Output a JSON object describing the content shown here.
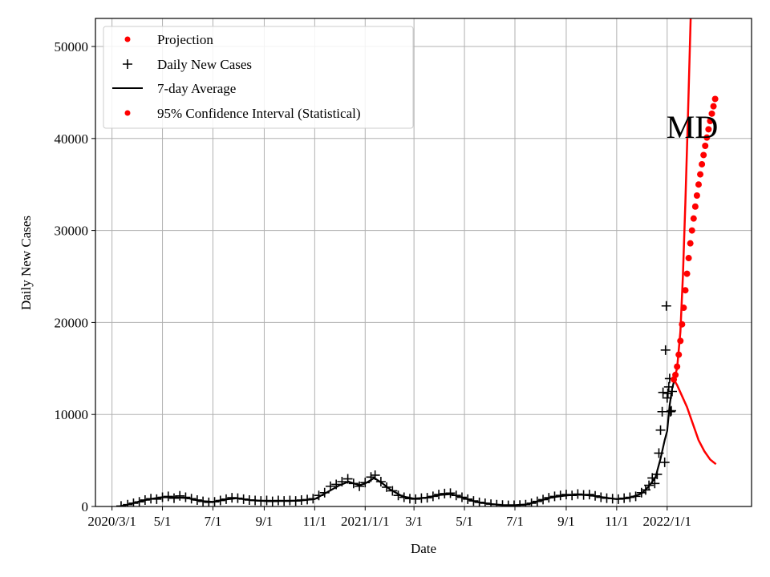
{
  "chart_data": {
    "type": "line",
    "title": "",
    "annotation": "MD",
    "xlabel": "Date",
    "ylabel": "Daily New Cases",
    "xlim": [
      "2020-02-10",
      "2022-04-13"
    ],
    "ylim": [
      0,
      53050
    ],
    "grid": true,
    "legend_position": "top-left",
    "x_ticks": [
      {
        "date": "2020-03-01",
        "label": "2020/3/1"
      },
      {
        "date": "2020-05-01",
        "label": "5/1"
      },
      {
        "date": "2020-07-01",
        "label": "7/1"
      },
      {
        "date": "2020-09-01",
        "label": "9/1"
      },
      {
        "date": "2020-11-01",
        "label": "11/1"
      },
      {
        "date": "2021-01-01",
        "label": "2021/1/1"
      },
      {
        "date": "2021-03-01",
        "label": "3/1"
      },
      {
        "date": "2021-05-01",
        "label": "5/1"
      },
      {
        "date": "2021-07-01",
        "label": "7/1"
      },
      {
        "date": "2021-09-01",
        "label": "9/1"
      },
      {
        "date": "2021-11-01",
        "label": "11/1"
      },
      {
        "date": "2022-01-01",
        "label": "2022/1/1"
      }
    ],
    "y_ticks": [
      0,
      10000,
      20000,
      30000,
      40000,
      50000
    ],
    "colors": {
      "projection": "#ff0000",
      "daily": "#000000",
      "average": "#000000",
      "ci": "#ff0000"
    },
    "legend": [
      {
        "label": "Projection",
        "marker": "dot",
        "color": "#ff0000"
      },
      {
        "label": "Daily New Cases",
        "marker": "plus",
        "color": "#000000"
      },
      {
        "label": "7-day Average",
        "marker": "line",
        "color": "#000000"
      },
      {
        "label": "95% Confidence Interval (Statistical)",
        "marker": "dot",
        "color": "#ff0000"
      }
    ],
    "series": [
      {
        "name": "Daily New Cases",
        "kind": "scatter-plus",
        "points": [
          [
            "2020-03-12",
            50
          ],
          [
            "2020-03-20",
            200
          ],
          [
            "2020-03-27",
            350
          ],
          [
            "2020-04-03",
            500
          ],
          [
            "2020-04-10",
            700
          ],
          [
            "2020-04-17",
            850
          ],
          [
            "2020-04-24",
            800
          ],
          [
            "2020-05-01",
            1000
          ],
          [
            "2020-05-08",
            1100
          ],
          [
            "2020-05-15",
            900
          ],
          [
            "2020-05-22",
            1150
          ],
          [
            "2020-05-29",
            1000
          ],
          [
            "2020-06-05",
            850
          ],
          [
            "2020-06-12",
            700
          ],
          [
            "2020-06-19",
            550
          ],
          [
            "2020-06-26",
            450
          ],
          [
            "2020-07-03",
            500
          ],
          [
            "2020-07-10",
            650
          ],
          [
            "2020-07-17",
            800
          ],
          [
            "2020-07-24",
            950
          ],
          [
            "2020-07-31",
            900
          ],
          [
            "2020-08-07",
            800
          ],
          [
            "2020-08-14",
            700
          ],
          [
            "2020-08-21",
            650
          ],
          [
            "2020-08-28",
            600
          ],
          [
            "2020-09-04",
            650
          ],
          [
            "2020-09-11",
            550
          ],
          [
            "2020-09-18",
            650
          ],
          [
            "2020-09-25",
            600
          ],
          [
            "2020-10-02",
            650
          ],
          [
            "2020-10-09",
            600
          ],
          [
            "2020-10-16",
            700
          ],
          [
            "2020-10-23",
            750
          ],
          [
            "2020-10-30",
            850
          ],
          [
            "2020-11-06",
            1200
          ],
          [
            "2020-11-13",
            1500
          ],
          [
            "2020-11-20",
            2200
          ],
          [
            "2020-11-27",
            2400
          ],
          [
            "2020-12-04",
            2700
          ],
          [
            "2020-12-11",
            3000
          ],
          [
            "2020-12-18",
            2500
          ],
          [
            "2020-12-25",
            2200
          ],
          [
            "2021-01-01",
            2600
          ],
          [
            "2021-01-08",
            3200
          ],
          [
            "2021-01-13",
            3400
          ],
          [
            "2021-01-20",
            2700
          ],
          [
            "2021-01-27",
            2100
          ],
          [
            "2021-02-03",
            1700
          ],
          [
            "2021-02-10",
            1200
          ],
          [
            "2021-02-17",
            1000
          ],
          [
            "2021-02-24",
            850
          ],
          [
            "2021-03-03",
            800
          ],
          [
            "2021-03-10",
            900
          ],
          [
            "2021-03-17",
            950
          ],
          [
            "2021-03-24",
            1100
          ],
          [
            "2021-03-31",
            1300
          ],
          [
            "2021-04-07",
            1400
          ],
          [
            "2021-04-14",
            1450
          ],
          [
            "2021-04-21",
            1200
          ],
          [
            "2021-04-28",
            1000
          ],
          [
            "2021-05-05",
            800
          ],
          [
            "2021-05-12",
            600
          ],
          [
            "2021-05-19",
            450
          ],
          [
            "2021-05-26",
            350
          ],
          [
            "2021-06-02",
            250
          ],
          [
            "2021-06-09",
            200
          ],
          [
            "2021-06-16",
            150
          ],
          [
            "2021-06-23",
            120
          ],
          [
            "2021-06-30",
            130
          ],
          [
            "2021-07-07",
            150
          ],
          [
            "2021-07-14",
            200
          ],
          [
            "2021-07-21",
            350
          ],
          [
            "2021-07-28",
            550
          ],
          [
            "2021-08-04",
            750
          ],
          [
            "2021-08-11",
            950
          ],
          [
            "2021-08-18",
            1100
          ],
          [
            "2021-08-25",
            1200
          ],
          [
            "2021-09-01",
            1300
          ],
          [
            "2021-09-08",
            1200
          ],
          [
            "2021-09-15",
            1350
          ],
          [
            "2021-09-22",
            1250
          ],
          [
            "2021-09-29",
            1300
          ],
          [
            "2021-10-06",
            1150
          ],
          [
            "2021-10-13",
            1000
          ],
          [
            "2021-10-20",
            900
          ],
          [
            "2021-10-27",
            850
          ],
          [
            "2021-11-03",
            800
          ],
          [
            "2021-11-10",
            900
          ],
          [
            "2021-11-17",
            1000
          ],
          [
            "2021-11-24",
            1100
          ],
          [
            "2021-12-01",
            1500
          ],
          [
            "2021-12-06",
            1800
          ],
          [
            "2021-12-10",
            2300
          ],
          [
            "2021-12-14",
            3100
          ],
          [
            "2021-12-17",
            2500
          ],
          [
            "2021-12-20",
            3500
          ],
          [
            "2021-12-22",
            5800
          ],
          [
            "2021-12-24",
            8300
          ],
          [
            "2021-12-26",
            10300
          ],
          [
            "2021-12-27",
            12400
          ],
          [
            "2021-12-29",
            4800
          ],
          [
            "2021-12-30",
            17000
          ],
          [
            "2021-12-31",
            21800
          ],
          [
            "2022-01-01",
            11800
          ],
          [
            "2022-01-02",
            12300
          ],
          [
            "2022-01-03",
            13000
          ],
          [
            "2022-01-04",
            13900
          ],
          [
            "2022-01-05",
            10300
          ],
          [
            "2022-01-06",
            10400
          ],
          [
            "2022-01-07",
            12500
          ]
        ]
      },
      {
        "name": "7-day Average",
        "kind": "line",
        "points": [
          [
            "2020-03-10",
            0
          ],
          [
            "2020-03-20",
            200
          ],
          [
            "2020-04-01",
            500
          ],
          [
            "2020-04-15",
            800
          ],
          [
            "2020-05-01",
            1000
          ],
          [
            "2020-05-15",
            1000
          ],
          [
            "2020-06-01",
            900
          ],
          [
            "2020-06-15",
            600
          ],
          [
            "2020-07-01",
            500
          ],
          [
            "2020-07-15",
            750
          ],
          [
            "2020-07-30",
            900
          ],
          [
            "2020-08-15",
            700
          ],
          [
            "2020-09-01",
            600
          ],
          [
            "2020-09-15",
            600
          ],
          [
            "2020-10-01",
            600
          ],
          [
            "2020-10-15",
            650
          ],
          [
            "2020-11-01",
            800
          ],
          [
            "2020-11-15",
            1500
          ],
          [
            "2020-12-01",
            2300
          ],
          [
            "2020-12-12",
            2700
          ],
          [
            "2020-12-25",
            2300
          ],
          [
            "2021-01-01",
            2500
          ],
          [
            "2021-01-12",
            3100
          ],
          [
            "2021-01-22",
            2500
          ],
          [
            "2021-02-01",
            1800
          ],
          [
            "2021-02-15",
            1100
          ],
          [
            "2021-03-01",
            850
          ],
          [
            "2021-03-15",
            950
          ],
          [
            "2021-04-01",
            1250
          ],
          [
            "2021-04-15",
            1350
          ],
          [
            "2021-05-01",
            900
          ],
          [
            "2021-05-15",
            500
          ],
          [
            "2021-06-01",
            280
          ],
          [
            "2021-06-15",
            150
          ],
          [
            "2021-07-01",
            140
          ],
          [
            "2021-07-15",
            220
          ],
          [
            "2021-08-01",
            650
          ],
          [
            "2021-08-15",
            1000
          ],
          [
            "2021-09-01",
            1200
          ],
          [
            "2021-09-15",
            1300
          ],
          [
            "2021-10-01",
            1200
          ],
          [
            "2021-10-15",
            1000
          ],
          [
            "2021-11-01",
            800
          ],
          [
            "2021-11-15",
            900
          ],
          [
            "2021-12-01",
            1400
          ],
          [
            "2021-12-10",
            2200
          ],
          [
            "2021-12-18",
            3200
          ],
          [
            "2021-12-24",
            5200
          ],
          [
            "2021-12-29",
            7200
          ],
          [
            "2022-01-01",
            8200
          ],
          [
            "2022-01-04",
            11000
          ],
          [
            "2022-01-07",
            12800
          ],
          [
            "2022-01-09",
            13500
          ]
        ]
      },
      {
        "name": "Projection",
        "kind": "scatter-dot",
        "points": [
          [
            "2022-01-09",
            13800
          ],
          [
            "2022-01-11",
            14300
          ],
          [
            "2022-01-13",
            15200
          ],
          [
            "2022-01-15",
            16500
          ],
          [
            "2022-01-17",
            18000
          ],
          [
            "2022-01-19",
            19800
          ],
          [
            "2022-01-21",
            21600
          ],
          [
            "2022-01-23",
            23500
          ],
          [
            "2022-01-25",
            25300
          ],
          [
            "2022-01-27",
            27000
          ],
          [
            "2022-01-29",
            28600
          ],
          [
            "2022-01-31",
            30000
          ],
          [
            "2022-02-02",
            31300
          ],
          [
            "2022-02-04",
            32600
          ],
          [
            "2022-02-06",
            33800
          ],
          [
            "2022-02-08",
            35000
          ],
          [
            "2022-02-10",
            36100
          ],
          [
            "2022-02-12",
            37200
          ],
          [
            "2022-02-14",
            38200
          ],
          [
            "2022-02-16",
            39200
          ],
          [
            "2022-02-18",
            40100
          ],
          [
            "2022-02-20",
            41000
          ],
          [
            "2022-02-22",
            41900
          ],
          [
            "2022-02-24",
            42700
          ],
          [
            "2022-02-26",
            43500
          ],
          [
            "2022-02-28",
            44300
          ]
        ]
      },
      {
        "name": "95% Confidence Interval (Statistical)",
        "kind": "band-lines",
        "upper": [
          [
            "2022-01-09",
            13800
          ],
          [
            "2022-01-13",
            15000
          ],
          [
            "2022-01-17",
            19000
          ],
          [
            "2022-01-20",
            25000
          ],
          [
            "2022-01-23",
            33000
          ],
          [
            "2022-01-26",
            42000
          ],
          [
            "2022-01-30",
            55000
          ]
        ],
        "lower": [
          [
            "2022-01-09",
            13800
          ],
          [
            "2022-01-13",
            13200
          ],
          [
            "2022-01-18",
            12200
          ],
          [
            "2022-01-25",
            10800
          ],
          [
            "2022-02-01",
            9000
          ],
          [
            "2022-02-08",
            7200
          ],
          [
            "2022-02-15",
            6000
          ],
          [
            "2022-02-22",
            5100
          ],
          [
            "2022-03-01",
            4600
          ]
        ]
      }
    ]
  }
}
